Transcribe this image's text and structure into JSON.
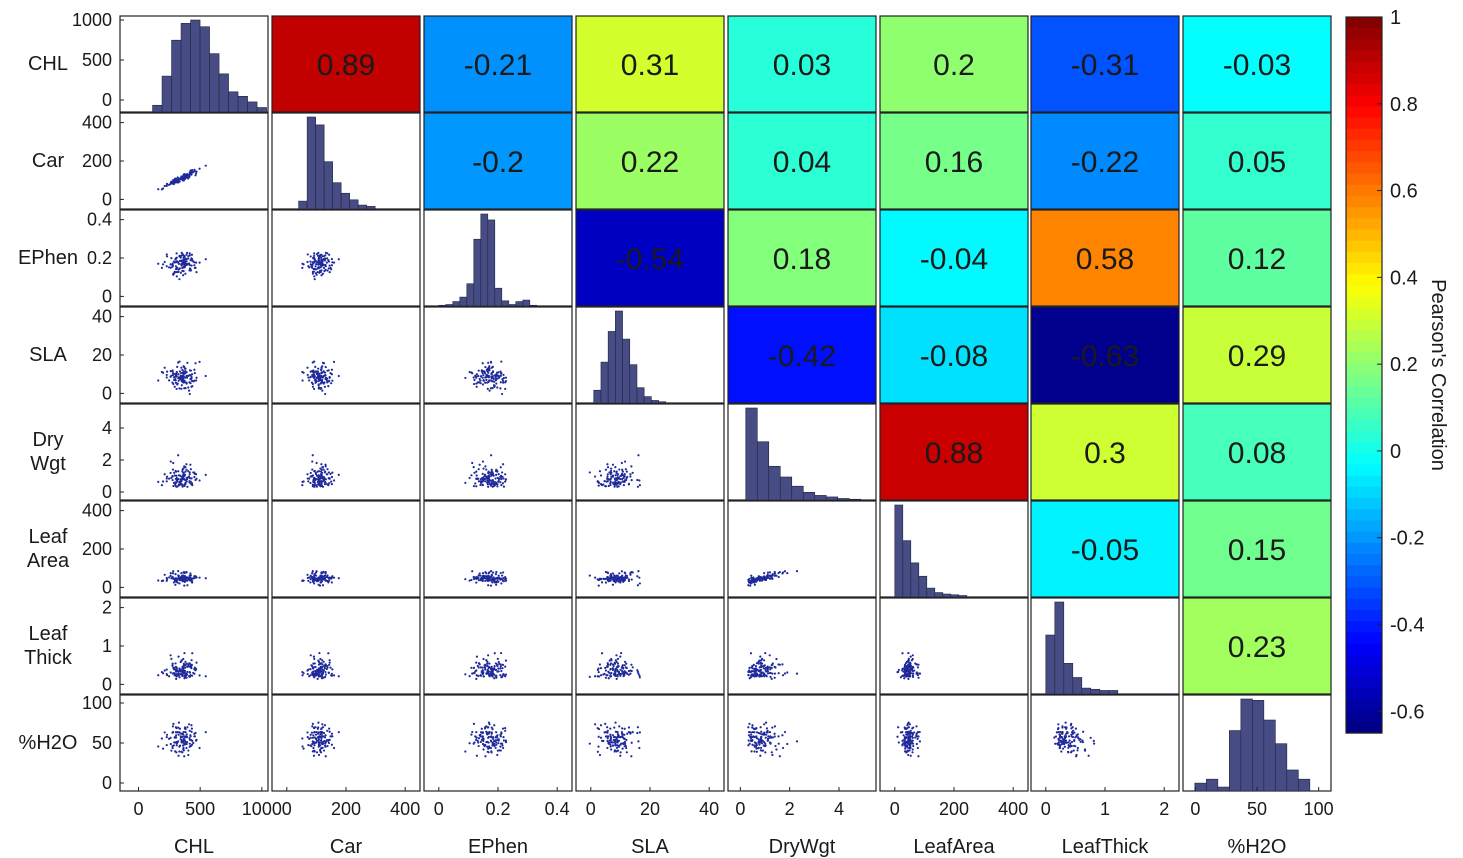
{
  "chart_data": {
    "type": "heatmap",
    "variables": [
      "CHL",
      "Car",
      "EPhen",
      "SLA",
      "DryWgt",
      "LeafArea",
      "LeafThick",
      "%H2O"
    ],
    "row_labels": [
      [
        "CHL"
      ],
      [
        "Car"
      ],
      [
        "EPhen"
      ],
      [
        "SLA"
      ],
      [
        "Dry",
        "Wgt"
      ],
      [
        "Leaf",
        "Area"
      ],
      [
        "Leaf",
        "Thick"
      ],
      [
        "%H2O"
      ]
    ],
    "correlation_upper": [
      [
        null,
        "0.89",
        "-0.21",
        "0.31",
        "0.03",
        "0.2",
        "-0.31",
        "-0.03"
      ],
      [
        null,
        null,
        "-0.2",
        "0.22",
        "0.04",
        "0.16",
        "-0.22",
        "0.05"
      ],
      [
        null,
        null,
        null,
        "-0.54",
        "0.18",
        "-0.04",
        "0.58",
        "0.12"
      ],
      [
        null,
        null,
        null,
        null,
        "-0.42",
        "-0.08",
        "-0.63",
        "0.29"
      ],
      [
        null,
        null,
        null,
        null,
        null,
        "0.88",
        "0.3",
        "0.08"
      ],
      [
        null,
        null,
        null,
        null,
        null,
        null,
        "-0.05",
        "0.15"
      ],
      [
        null,
        null,
        null,
        null,
        null,
        null,
        null,
        "0.23"
      ],
      [
        null,
        null,
        null,
        null,
        null,
        null,
        null,
        null
      ]
    ],
    "axis_ticks": [
      {
        "ticks": [
          0,
          500,
          1000
        ],
        "labels": [
          "0",
          "500",
          "1000"
        ]
      },
      {
        "ticks": [
          0,
          200,
          400
        ],
        "labels": [
          "0",
          "200",
          "400"
        ]
      },
      {
        "ticks": [
          0,
          0.2,
          0.4
        ],
        "labels": [
          "0",
          "0.2",
          "0.4"
        ]
      },
      {
        "ticks": [
          0,
          20,
          40
        ],
        "labels": [
          "0",
          "20",
          "40"
        ]
      },
      {
        "ticks": [
          0,
          2,
          4
        ],
        "labels": [
          "0",
          "2",
          "4"
        ]
      },
      {
        "ticks": [
          0,
          200,
          400
        ],
        "labels": [
          "0",
          "200",
          "400"
        ]
      },
      {
        "ticks": [
          0,
          1,
          2
        ],
        "labels": [
          "0",
          "1",
          "2"
        ]
      },
      {
        "ticks": [
          0,
          50,
          100
        ],
        "labels": [
          "0",
          "50",
          "100"
        ]
      }
    ],
    "axis_ranges": [
      [
        -150,
        1050
      ],
      [
        -50,
        450
      ],
      [
        -0.05,
        0.45
      ],
      [
        -5,
        45
      ],
      [
        -0.5,
        5.5
      ],
      [
        -50,
        450
      ],
      [
        -0.25,
        2.25
      ],
      [
        -10,
        110
      ]
    ],
    "histograms": [
      [
        60,
        320,
        640,
        790,
        820,
        760,
        520,
        340,
        180,
        140,
        90,
        40
      ],
      [
        60,
        700,
        640,
        360,
        200,
        120,
        70,
        30,
        20
      ],
      [
        5,
        10,
        30,
        60,
        150,
        450,
        620,
        580,
        120,
        35,
        10,
        30,
        40,
        5
      ],
      [
        100,
        320,
        560,
        720,
        500,
        300,
        120,
        50,
        20,
        10
      ],
      [
        600,
        380,
        220,
        150,
        90,
        50,
        30,
        20,
        10,
        5
      ],
      [
        620,
        380,
        230,
        140,
        60,
        30,
        20,
        15,
        10
      ],
      [
        500,
        780,
        260,
        140,
        50,
        40,
        30,
        30
      ],
      [
        60,
        90,
        30,
        460,
        700,
        690,
        540,
        360,
        160,
        90
      ]
    ],
    "colorbar": {
      "label": "Pearson's Correlation",
      "range": [
        -0.65,
        1.0
      ],
      "ticks": [
        1,
        0.8,
        0.6,
        0.4,
        0.2,
        0,
        -0.2,
        -0.4,
        -0.6
      ],
      "tick_labels": [
        "1",
        "0.8",
        "0.6",
        "0.4",
        "0.2",
        "0",
        "-0.2",
        "-0.4",
        "-0.6"
      ],
      "colormap": "jet"
    },
    "scatter_style": {
      "color": "#1f2a9a",
      "histogram_color": "#474c84"
    }
  }
}
